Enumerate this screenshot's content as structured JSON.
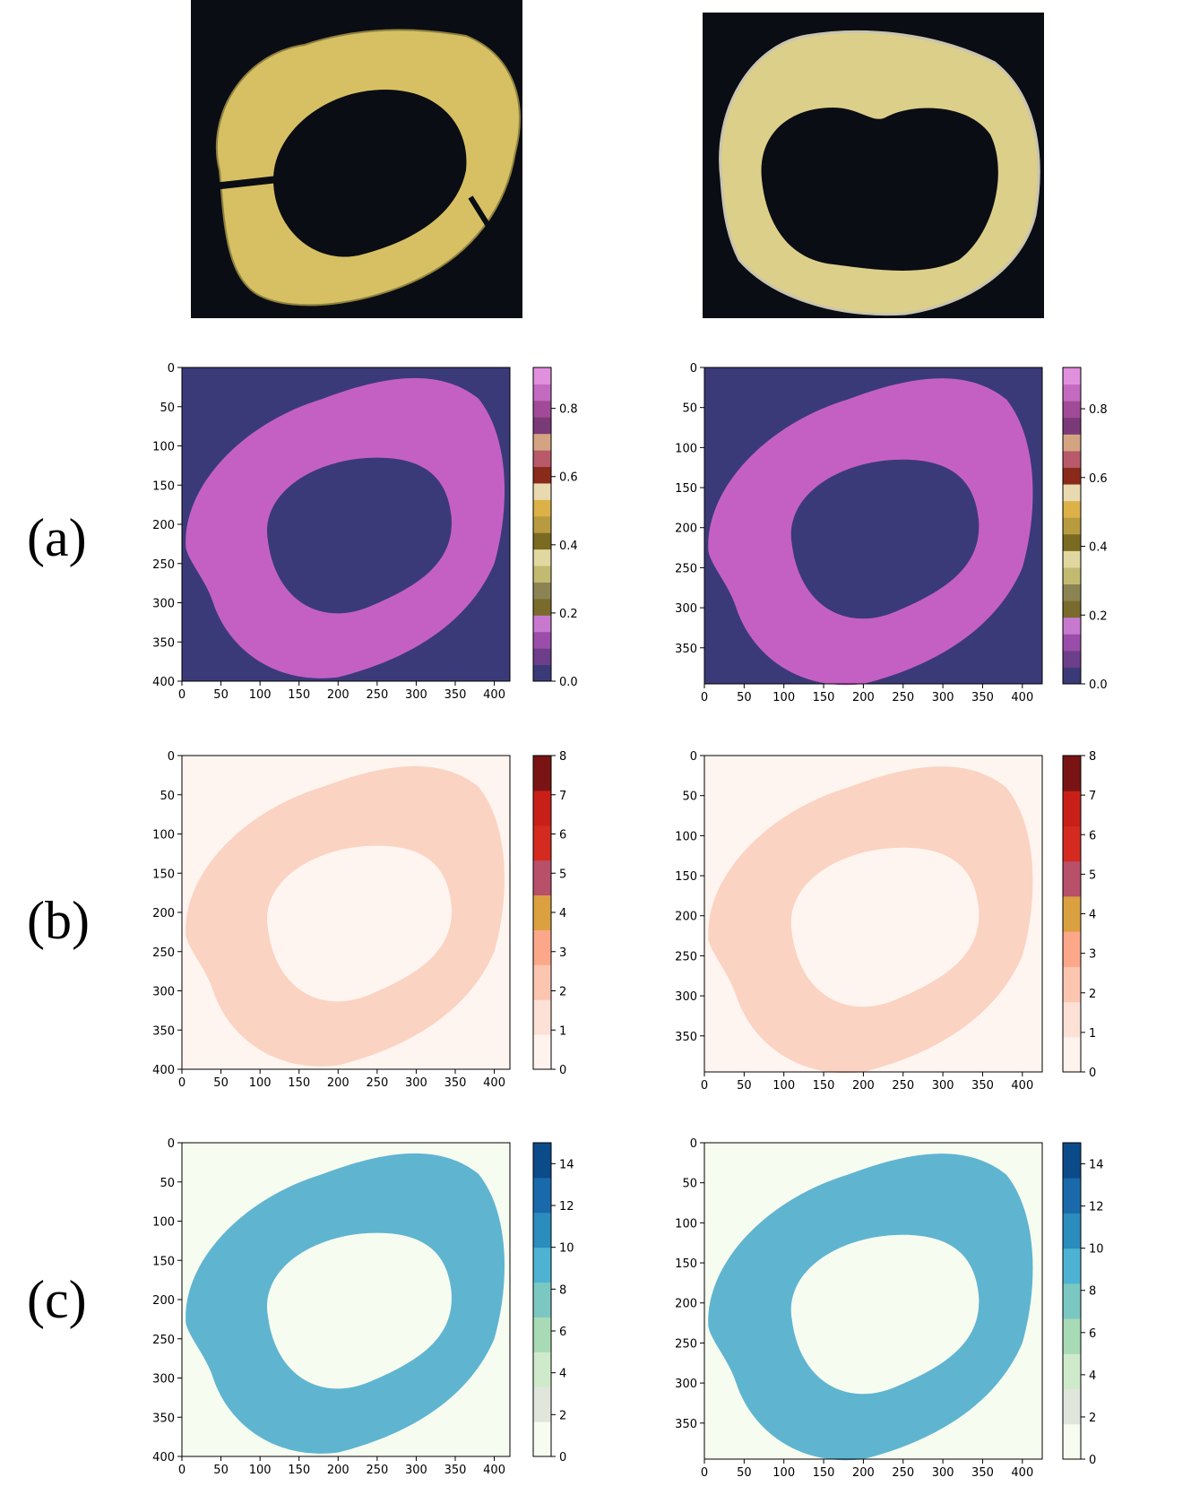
{
  "figure": {
    "row_labels": [
      "(a)",
      "(b)",
      "(c)"
    ],
    "photos": [
      {
        "name": "photo-left",
        "description_icon": "squash-slice-photo"
      },
      {
        "name": "photo-right",
        "description_icon": "squash-slice-photo"
      }
    ]
  },
  "chart_data": [
    {
      "type": "heatmap",
      "row": "(a)",
      "column": "left",
      "xticks": [
        "0",
        "50",
        "100",
        "150",
        "200",
        "250",
        "300",
        "350",
        "400"
      ],
      "yticks": [
        "0",
        "50",
        "100",
        "150",
        "200",
        "250",
        "300",
        "350",
        "400"
      ],
      "xlim": [
        0,
        420
      ],
      "ylim": [
        0,
        400
      ],
      "colorbar": {
        "min": 0,
        "max": 0.92,
        "ticks": [
          "0.0",
          "0.2",
          "0.4",
          "0.6",
          "0.8"
        ],
        "segments": [
          "#3b3a78",
          "#6d3e8a",
          "#9b4ea9",
          "#c779cf",
          "#7a6a2c",
          "#8b8353",
          "#c2ba70",
          "#e0d8a0",
          "#7a6a22",
          "#b89a40",
          "#dcb248",
          "#e8d9b0",
          "#8a2a1a",
          "#b85a6a",
          "#d4a482",
          "#7a3a78",
          "#a04a98",
          "#c46ac0",
          "#e090dc"
        ]
      },
      "background_color": "#3b3a78",
      "ring_color": "#c460c4"
    },
    {
      "type": "heatmap",
      "row": "(a)",
      "column": "right",
      "xticks": [
        "0",
        "50",
        "100",
        "150",
        "200",
        "250",
        "300",
        "350",
        "400"
      ],
      "yticks": [
        "0",
        "50",
        "100",
        "150",
        "200",
        "250",
        "300",
        "350"
      ],
      "xlim": [
        0,
        425
      ],
      "ylim": [
        0,
        395
      ],
      "colorbar": {
        "min": 0,
        "max": 0.92,
        "ticks": [
          "0.0",
          "0.2",
          "0.4",
          "0.6",
          "0.8"
        ],
        "segments": [
          "#3b3a78",
          "#6d3e8a",
          "#9b4ea9",
          "#c779cf",
          "#7a6a2c",
          "#8b8353",
          "#c2ba70",
          "#e0d8a0",
          "#7a6a22",
          "#b89a40",
          "#dcb248",
          "#e8d9b0",
          "#8a2a1a",
          "#b85a6a",
          "#d4a482",
          "#7a3a78",
          "#a04a98",
          "#c46ac0",
          "#e090dc"
        ]
      },
      "background_color": "#3b3a78",
      "ring_color": "#c460c4"
    },
    {
      "type": "heatmap",
      "row": "(b)",
      "column": "left",
      "xticks": [
        "0",
        "50",
        "100",
        "150",
        "200",
        "250",
        "300",
        "350",
        "400"
      ],
      "yticks": [
        "0",
        "50",
        "100",
        "150",
        "200",
        "250",
        "300",
        "350",
        "400"
      ],
      "xlim": [
        0,
        420
      ],
      "ylim": [
        0,
        400
      ],
      "colorbar": {
        "min": 0,
        "max": 8,
        "ticks": [
          "0",
          "1",
          "2",
          "3",
          "4",
          "5",
          "6",
          "7",
          "8"
        ],
        "segments": [
          "#fff3ee",
          "#fde0d6",
          "#fcc5b0",
          "#fca78a",
          "#dba040",
          "#b8506a",
          "#d42a20",
          "#c82018",
          "#7a1414"
        ]
      },
      "background_color": "#fff5f0",
      "ring_color": "#fbd3c2"
    },
    {
      "type": "heatmap",
      "row": "(b)",
      "column": "right",
      "xticks": [
        "0",
        "50",
        "100",
        "150",
        "200",
        "250",
        "300",
        "350",
        "400"
      ],
      "yticks": [
        "0",
        "50",
        "100",
        "150",
        "200",
        "250",
        "300",
        "350"
      ],
      "xlim": [
        0,
        425
      ],
      "ylim": [
        0,
        395
      ],
      "colorbar": {
        "min": 0,
        "max": 8,
        "ticks": [
          "0",
          "1",
          "2",
          "3",
          "4",
          "5",
          "6",
          "7",
          "8"
        ],
        "segments": [
          "#fff3ee",
          "#fde0d6",
          "#fcc5b0",
          "#fca78a",
          "#dba040",
          "#b8506a",
          "#d42a20",
          "#c82018",
          "#7a1414"
        ]
      },
      "background_color": "#fff5f0",
      "ring_color": "#fbd3c2"
    },
    {
      "type": "heatmap",
      "row": "(c)",
      "column": "left",
      "xticks": [
        "0",
        "50",
        "100",
        "150",
        "200",
        "250",
        "300",
        "350",
        "400"
      ],
      "yticks": [
        "0",
        "50",
        "100",
        "150",
        "200",
        "250",
        "300",
        "350",
        "400"
      ],
      "xlim": [
        0,
        420
      ],
      "ylim": [
        0,
        400
      ],
      "colorbar": {
        "min": 0,
        "max": 15,
        "ticks": [
          "0",
          "2",
          "4",
          "6",
          "8",
          "10",
          "12",
          "14"
        ],
        "segments": [
          "#f7fcf0",
          "#e0e6dc",
          "#cfeacb",
          "#a8dbb5",
          "#7bc8c2",
          "#4eb3d3",
          "#2b8cbe",
          "#1a6aab",
          "#0b4b8a"
        ]
      },
      "background_color": "#f7fcf0",
      "ring_color": "#5fb5d0"
    },
    {
      "type": "heatmap",
      "row": "(c)",
      "column": "right",
      "xticks": [
        "0",
        "50",
        "100",
        "150",
        "200",
        "250",
        "300",
        "350",
        "400"
      ],
      "yticks": [
        "0",
        "50",
        "100",
        "150",
        "200",
        "250",
        "300",
        "350"
      ],
      "xlim": [
        0,
        425
      ],
      "ylim": [
        0,
        395
      ],
      "colorbar": {
        "min": 0,
        "max": 15,
        "ticks": [
          "0",
          "2",
          "4",
          "6",
          "8",
          "10",
          "12",
          "14"
        ],
        "segments": [
          "#f7fcf0",
          "#e0e6dc",
          "#cfeacb",
          "#a8dbb5",
          "#7bc8c2",
          "#4eb3d3",
          "#2b8cbe",
          "#1a6aab",
          "#0b4b8a"
        ]
      },
      "background_color": "#f7fcf0",
      "ring_color": "#5fb5d0"
    }
  ]
}
